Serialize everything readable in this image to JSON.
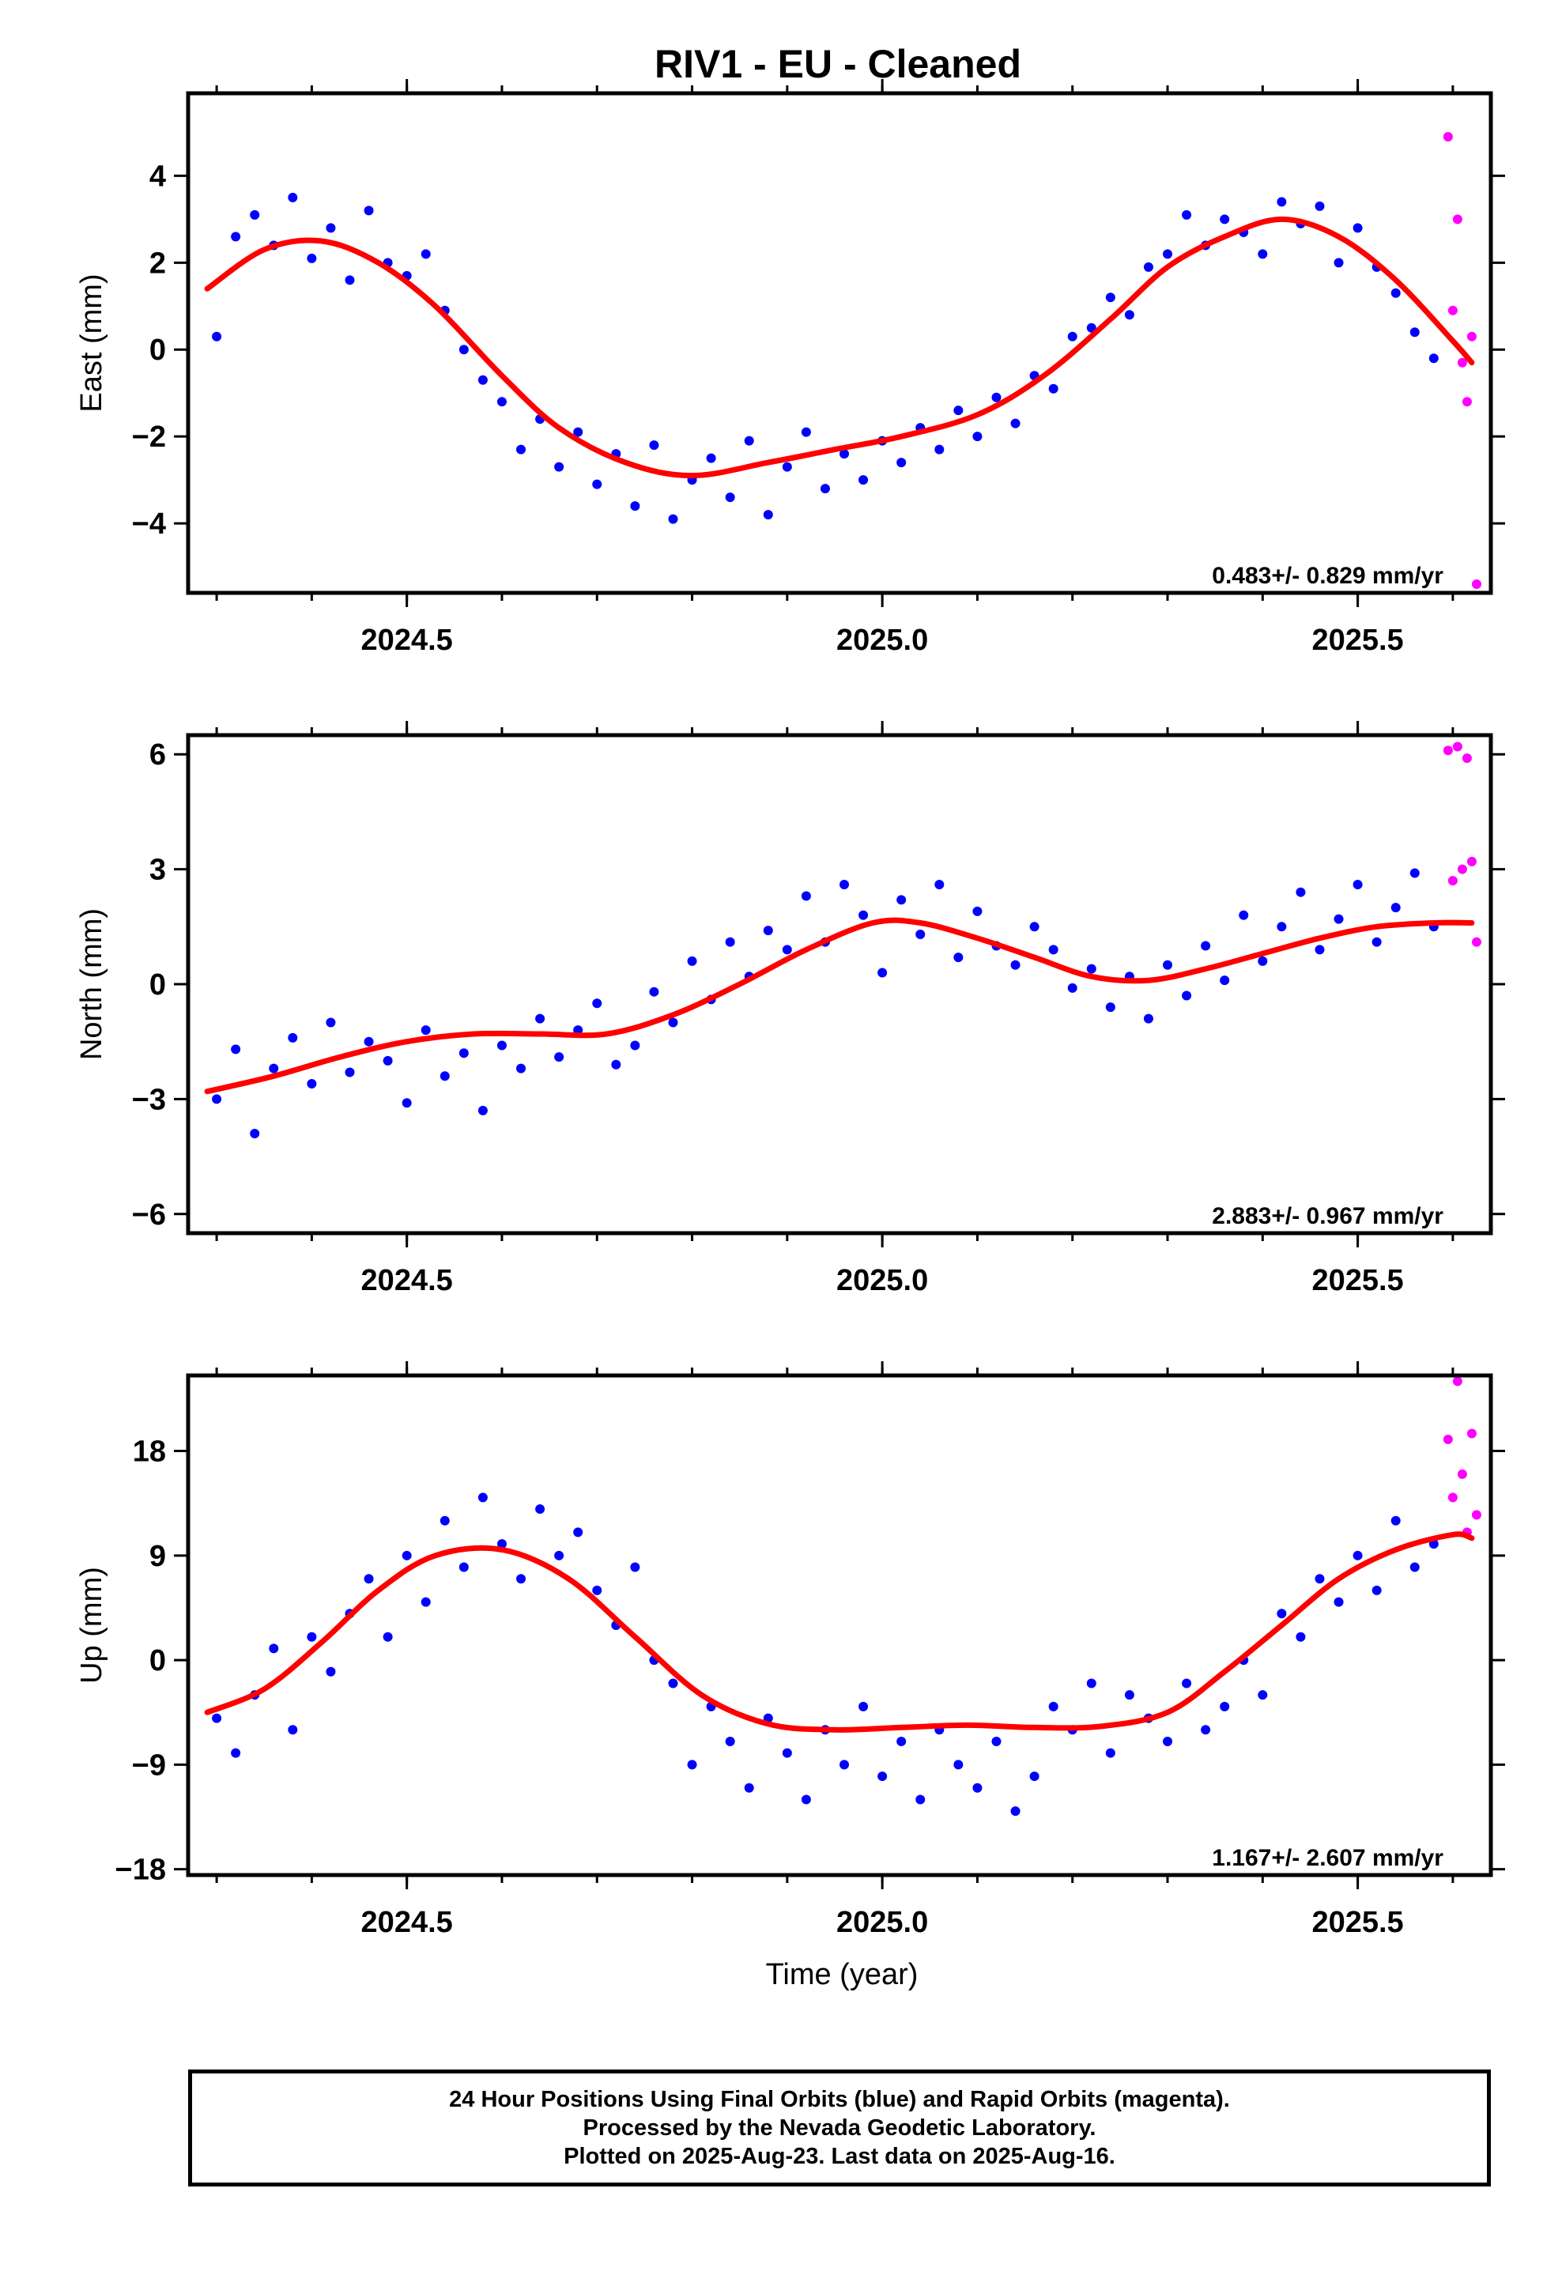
{
  "title": "RIV1  - EU - Cleaned",
  "xlabel": "Time (year)",
  "colors": {
    "final_orbits": "#0000ff",
    "rapid_orbits": "#ff00ff",
    "model": "#ff0000",
    "frame": "#000000"
  },
  "footer": {
    "line1": "24 Hour Positions Using Final Orbits (blue) and Rapid Orbits (magenta).",
    "line2": "Processed by the Nevada Geodetic Laboratory.",
    "line3": "Plotted on 2025-Aug-23. Last data on 2025-Aug-16."
  },
  "chart_data": [
    {
      "type": "scatter",
      "ylabel": "East (mm)",
      "rate_label": "0.483+/- 0.829 mm/yr",
      "xlim": [
        2024.27,
        2025.64
      ],
      "ylim": [
        -5.6,
        5.9
      ],
      "xticks": [
        2024.5,
        2025.0,
        2025.5
      ],
      "xtick_labels": [
        "2024.5",
        "2025.0",
        "2025.5"
      ],
      "yticks": [
        -4,
        -2,
        0,
        2,
        4
      ],
      "ytick_labels": [
        "−4",
        "−2",
        "0",
        "2",
        "4"
      ],
      "model_curve": {
        "name": "model",
        "x": [
          2024.29,
          2024.35,
          2024.41,
          2024.47,
          2024.53,
          2024.6,
          2024.66,
          2024.73,
          2024.8,
          2024.88,
          2024.95,
          2025.02,
          2025.1,
          2025.17,
          2025.24,
          2025.3,
          2025.36,
          2025.42,
          2025.48,
          2025.54,
          2025.6,
          2025.62
        ],
        "y": [
          1.4,
          2.3,
          2.5,
          2.0,
          1.0,
          -0.6,
          -1.8,
          -2.6,
          -2.9,
          -2.6,
          -2.3,
          -2.0,
          -1.5,
          -0.6,
          0.7,
          1.9,
          2.6,
          3.0,
          2.6,
          1.6,
          0.2,
          -0.3
        ]
      },
      "final_orbits": {
        "name": "Final Orbits",
        "x": [
          2024.3,
          2024.32,
          2024.34,
          2024.36,
          2024.38,
          2024.4,
          2024.42,
          2024.44,
          2024.46,
          2024.48,
          2024.5,
          2024.52,
          2024.54,
          2024.56,
          2024.58,
          2024.6,
          2024.62,
          2024.64,
          2024.66,
          2024.68,
          2024.7,
          2024.72,
          2024.74,
          2024.76,
          2024.78,
          2024.8,
          2024.82,
          2024.84,
          2024.86,
          2024.88,
          2024.9,
          2024.92,
          2024.94,
          2024.96,
          2024.98,
          2025.0,
          2025.02,
          2025.04,
          2025.06,
          2025.08,
          2025.1,
          2025.12,
          2025.14,
          2025.16,
          2025.18,
          2025.2,
          2025.22,
          2025.24,
          2025.26,
          2025.28,
          2025.3,
          2025.32,
          2025.34,
          2025.36,
          2025.38,
          2025.4,
          2025.42,
          2025.44,
          2025.46,
          2025.48,
          2025.5,
          2025.52,
          2025.54,
          2025.56,
          2025.58
        ],
        "y": [
          0.3,
          2.6,
          3.1,
          2.4,
          3.5,
          2.1,
          2.8,
          1.6,
          3.2,
          2.0,
          1.7,
          2.2,
          0.9,
          0.0,
          -0.7,
          -1.2,
          -2.3,
          -1.6,
          -2.7,
          -1.9,
          -3.1,
          -2.4,
          -3.6,
          -2.2,
          -3.9,
          -3.0,
          -2.5,
          -3.4,
          -2.1,
          -3.8,
          -2.7,
          -1.9,
          -3.2,
          -2.4,
          -3.0,
          -2.1,
          -2.6,
          -1.8,
          -2.3,
          -1.4,
          -2.0,
          -1.1,
          -1.7,
          -0.6,
          -0.9,
          0.3,
          0.5,
          1.2,
          0.8,
          1.9,
          2.2,
          3.1,
          2.4,
          3.0,
          2.7,
          2.2,
          3.4,
          2.9,
          3.3,
          2.0,
          2.8,
          1.9,
          1.3,
          0.4,
          -0.2
        ]
      },
      "rapid_orbits": {
        "name": "Rapid Orbits",
        "x": [
          2025.595,
          2025.6,
          2025.605,
          2025.61,
          2025.615,
          2025.62,
          2025.625
        ],
        "y": [
          4.9,
          0.9,
          3.0,
          -0.3,
          -1.2,
          0.3,
          -5.4
        ]
      }
    },
    {
      "type": "scatter",
      "ylabel": "North (mm)",
      "rate_label": "2.883+/- 0.967 mm/yr",
      "xlim": [
        2024.27,
        2025.64
      ],
      "ylim": [
        -6.5,
        6.5
      ],
      "xticks": [
        2024.5,
        2025.0,
        2025.5
      ],
      "xtick_labels": [
        "2024.5",
        "2025.0",
        "2025.5"
      ],
      "yticks": [
        -6,
        -3,
        0,
        3,
        6
      ],
      "ytick_labels": [
        "−6",
        "−3",
        "0",
        "3",
        "6"
      ],
      "model_curve": {
        "name": "model",
        "x": [
          2024.29,
          2024.36,
          2024.43,
          2024.5,
          2024.57,
          2024.64,
          2024.71,
          2024.78,
          2024.85,
          2024.92,
          2024.99,
          2025.04,
          2025.1,
          2025.16,
          2025.22,
          2025.28,
          2025.34,
          2025.4,
          2025.46,
          2025.52,
          2025.58,
          2025.62
        ],
        "y": [
          -2.8,
          -2.4,
          -1.9,
          -1.5,
          -1.3,
          -1.3,
          -1.3,
          -0.8,
          0.0,
          0.9,
          1.6,
          1.6,
          1.2,
          0.7,
          0.2,
          0.1,
          0.4,
          0.8,
          1.2,
          1.5,
          1.6,
          1.6
        ]
      },
      "final_orbits": {
        "name": "Final Orbits",
        "x": [
          2024.3,
          2024.32,
          2024.34,
          2024.36,
          2024.38,
          2024.4,
          2024.42,
          2024.44,
          2024.46,
          2024.48,
          2024.5,
          2024.52,
          2024.54,
          2024.56,
          2024.58,
          2024.6,
          2024.62,
          2024.64,
          2024.66,
          2024.68,
          2024.7,
          2024.72,
          2024.74,
          2024.76,
          2024.78,
          2024.8,
          2024.82,
          2024.84,
          2024.86,
          2024.88,
          2024.9,
          2024.92,
          2024.94,
          2024.96,
          2024.98,
          2025.0,
          2025.02,
          2025.04,
          2025.06,
          2025.08,
          2025.1,
          2025.12,
          2025.14,
          2025.16,
          2025.18,
          2025.2,
          2025.22,
          2025.24,
          2025.26,
          2025.28,
          2025.3,
          2025.32,
          2025.34,
          2025.36,
          2025.38,
          2025.4,
          2025.42,
          2025.44,
          2025.46,
          2025.48,
          2025.5,
          2025.52,
          2025.54,
          2025.56,
          2025.58
        ],
        "y": [
          -3.0,
          -1.7,
          -3.9,
          -2.2,
          -1.4,
          -2.6,
          -1.0,
          -2.3,
          -1.5,
          -2.0,
          -3.1,
          -1.2,
          -2.4,
          -1.8,
          -3.3,
          -1.6,
          -2.2,
          -0.9,
          -1.9,
          -1.2,
          -0.5,
          -2.1,
          -1.6,
          -0.2,
          -1.0,
          0.6,
          -0.4,
          1.1,
          0.2,
          1.4,
          0.9,
          2.3,
          1.1,
          2.6,
          1.8,
          0.3,
          2.2,
          1.3,
          2.6,
          0.7,
          1.9,
          1.0,
          0.5,
          1.5,
          0.9,
          -0.1,
          0.4,
          -0.6,
          0.2,
          -0.9,
          0.5,
          -0.3,
          1.0,
          0.1,
          1.8,
          0.6,
          1.5,
          2.4,
          0.9,
          1.7,
          2.6,
          1.1,
          2.0,
          2.9,
          1.5
        ]
      },
      "rapid_orbits": {
        "name": "Rapid Orbits",
        "x": [
          2025.595,
          2025.6,
          2025.605,
          2025.61,
          2025.615,
          2025.62,
          2025.625
        ],
        "y": [
          6.1,
          2.7,
          6.2,
          3.0,
          5.9,
          3.2,
          1.1
        ]
      }
    },
    {
      "type": "scatter",
      "ylabel": "Up (mm)",
      "rate_label": "1.167+/- 2.607 mm/yr",
      "xlim": [
        2024.27,
        2025.64
      ],
      "ylim": [
        -18.5,
        24.5
      ],
      "xticks": [
        2024.5,
        2025.0,
        2025.5
      ],
      "xtick_labels": [
        "2024.5",
        "2025.0",
        "2025.5"
      ],
      "yticks": [
        -18,
        -9,
        0,
        9,
        18
      ],
      "ytick_labels": [
        "−18",
        "−9",
        "0",
        "9",
        "18"
      ],
      "model_curve": {
        "name": "model",
        "x": [
          2024.29,
          2024.35,
          2024.41,
          2024.47,
          2024.53,
          2024.6,
          2024.67,
          2024.74,
          2024.81,
          2024.88,
          2024.95,
          2025.02,
          2025.09,
          2025.16,
          2025.23,
          2025.3,
          2025.36,
          2025.42,
          2025.48,
          2025.54,
          2025.6,
          2025.62
        ],
        "y": [
          -4.5,
          -2.5,
          1.5,
          6.0,
          9.0,
          9.5,
          7.0,
          2.0,
          -3.0,
          -5.5,
          -6.0,
          -5.8,
          -5.6,
          -5.8,
          -5.7,
          -4.5,
          -1.0,
          3.0,
          7.0,
          9.5,
          10.8,
          10.5
        ]
      },
      "final_orbits": {
        "name": "Final Orbits",
        "x": [
          2024.3,
          2024.32,
          2024.34,
          2024.36,
          2024.38,
          2024.4,
          2024.42,
          2024.44,
          2024.46,
          2024.48,
          2024.5,
          2024.52,
          2024.54,
          2024.56,
          2024.58,
          2024.6,
          2024.62,
          2024.64,
          2024.66,
          2024.68,
          2024.7,
          2024.72,
          2024.74,
          2024.76,
          2024.78,
          2024.8,
          2024.82,
          2024.84,
          2024.86,
          2024.88,
          2024.9,
          2024.92,
          2024.94,
          2024.96,
          2024.98,
          2025.0,
          2025.02,
          2025.04,
          2025.06,
          2025.08,
          2025.1,
          2025.12,
          2025.14,
          2025.16,
          2025.18,
          2025.2,
          2025.22,
          2025.24,
          2025.26,
          2025.28,
          2025.3,
          2025.32,
          2025.34,
          2025.36,
          2025.38,
          2025.4,
          2025.42,
          2025.44,
          2025.46,
          2025.48,
          2025.5,
          2025.52,
          2025.54,
          2025.56,
          2025.58
        ],
        "y": [
          -5.0,
          -8.0,
          -3.0,
          1.0,
          -6.0,
          2.0,
          -1.0,
          4.0,
          7.0,
          2.0,
          9.0,
          5.0,
          12.0,
          8.0,
          14.0,
          10.0,
          7.0,
          13.0,
          9.0,
          11.0,
          6.0,
          3.0,
          8.0,
          0.0,
          -2.0,
          -9.0,
          -4.0,
          -7.0,
          -11.0,
          -5.0,
          -8.0,
          -12.0,
          -6.0,
          -9.0,
          -4.0,
          -10.0,
          -7.0,
          -12.0,
          -6.0,
          -9.0,
          -11.0,
          -7.0,
          -13.0,
          -10.0,
          -4.0,
          -6.0,
          -2.0,
          -8.0,
          -3.0,
          -5.0,
          -7.0,
          -2.0,
          -6.0,
          -4.0,
          0.0,
          -3.0,
          4.0,
          2.0,
          7.0,
          5.0,
          9.0,
          6.0,
          12.0,
          8.0,
          10.0
        ]
      },
      "rapid_orbits": {
        "name": "Rapid Orbits",
        "x": [
          2025.595,
          2025.6,
          2025.605,
          2025.61,
          2025.615,
          2025.62,
          2025.625
        ],
        "y": [
          19.0,
          14.0,
          24.0,
          16.0,
          11.0,
          19.5,
          12.5
        ]
      }
    }
  ]
}
